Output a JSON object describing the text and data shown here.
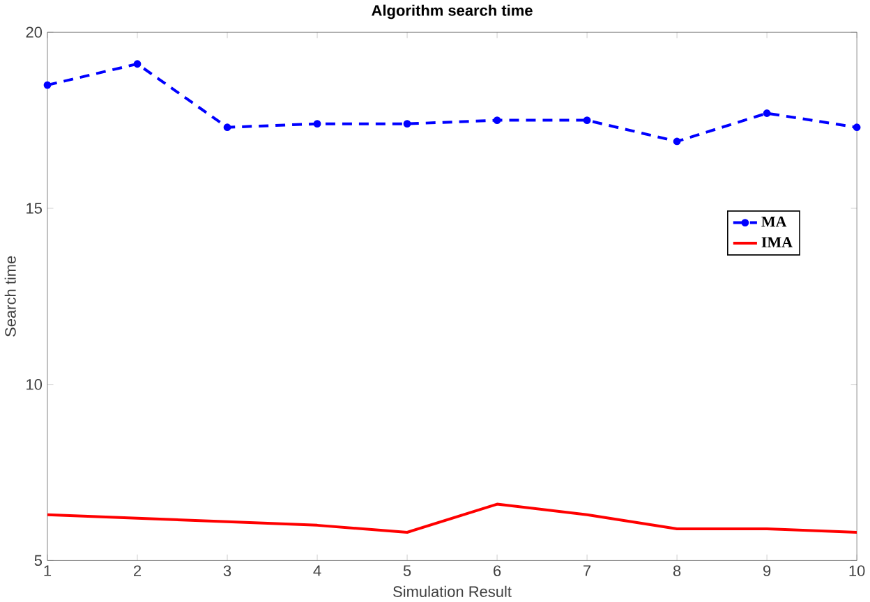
{
  "chart_data": {
    "type": "line",
    "title": "Algorithm search time",
    "xlabel": "Simulation Result",
    "ylabel": "Search time",
    "x": [
      1,
      2,
      3,
      4,
      5,
      6,
      7,
      8,
      9,
      10
    ],
    "series": [
      {
        "name": "MA",
        "color": "#0000ff",
        "marker": "circle",
        "line_style": "dashed",
        "values": [
          18.5,
          19.1,
          17.3,
          17.4,
          17.4,
          17.5,
          17.5,
          16.9,
          17.7,
          17.3
        ]
      },
      {
        "name": "IMA",
        "color": "#ff0000",
        "marker": "none",
        "line_style": "solid",
        "values": [
          6.3,
          6.2,
          6.1,
          6.0,
          5.8,
          6.6,
          6.3,
          5.9,
          5.9,
          5.8
        ]
      }
    ],
    "xlim": [
      1,
      10
    ],
    "ylim": [
      5,
      20
    ],
    "xticks": [
      1,
      2,
      3,
      4,
      5,
      6,
      7,
      8,
      9,
      10
    ],
    "yticks": [
      5,
      10,
      15,
      20
    ],
    "grid": false,
    "legend": "right"
  }
}
